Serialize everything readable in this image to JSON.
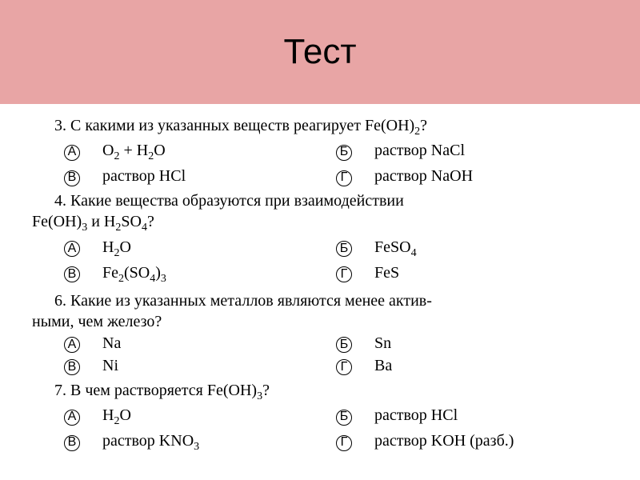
{
  "header": {
    "title": "Тест"
  },
  "fragment": {
    "left": "",
    "right": ""
  },
  "questions": [
    {
      "number": "3",
      "text": "С какими из указанных веществ реагирует Fe(OH)₂?",
      "options": [
        {
          "letter": "А",
          "text": "O₂ + H₂O"
        },
        {
          "letter": "Б",
          "text": "раствор NaCl"
        },
        {
          "letter": "В",
          "text": "раствор HCl"
        },
        {
          "letter": "Г",
          "text": "раствор NaOH"
        }
      ]
    },
    {
      "number": "4",
      "text": "Какие вещества образуются при взаимодействии",
      "continuation": "Fe(OH)₃ и H₂SO₄?",
      "options": [
        {
          "letter": "А",
          "text": "H₂O"
        },
        {
          "letter": "Б",
          "text": "FeSO₄"
        },
        {
          "letter": "В",
          "text": "Fe₂(SO₄)₃"
        },
        {
          "letter": "Г",
          "text": "FeS"
        }
      ]
    },
    {
      "number": "6",
      "text": "Какие из указанных металлов являются менее актив-",
      "continuation": "ными, чем железо?",
      "options": [
        {
          "letter": "А",
          "text": "Na"
        },
        {
          "letter": "Б",
          "text": "Sn"
        },
        {
          "letter": "В",
          "text": "Ni"
        },
        {
          "letter": "Г",
          "text": "Ba"
        }
      ]
    },
    {
      "number": "7",
      "text": "В чем растворяется Fe(OH)₃?",
      "options": [
        {
          "letter": "А",
          "text": "H₂O"
        },
        {
          "letter": "Б",
          "text": "раствор HCl"
        },
        {
          "letter": "В",
          "text": "раствор KNO₃"
        },
        {
          "letter": "Г",
          "text": "раствор KOH (разб.)"
        }
      ]
    }
  ],
  "colors": {
    "header_bg": "#e8a5a5",
    "text": "#000000",
    "background": "#ffffff"
  }
}
